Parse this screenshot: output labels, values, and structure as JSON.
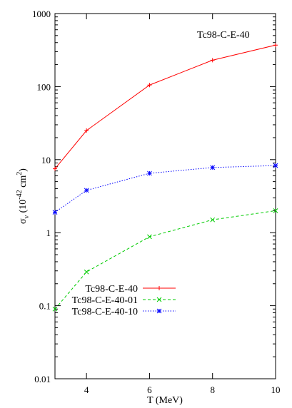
{
  "chart_data": {
    "type": "line",
    "title": "Tc98-C-E-40",
    "xlabel": "T (MeV)",
    "ylabel": {
      "sigma": "σ",
      "sub": "ν",
      "open": " (10",
      "exp": "-42",
      "unit": " cm",
      "sq": "2",
      "close": ")"
    },
    "yscale": "log",
    "xlim": [
      3,
      10
    ],
    "ylim": [
      0.01,
      1000
    ],
    "x_ticks": [
      4,
      6,
      8,
      10
    ],
    "x_tick_labels": [
      "4",
      "6",
      "8",
      "10"
    ],
    "y_ticks": [
      0.01,
      0.1,
      1,
      10,
      100,
      1000
    ],
    "y_tick_labels": [
      "0.01",
      "0.1",
      "1",
      "10",
      "100",
      "1000"
    ],
    "grid": false,
    "legend_position": "lower-left",
    "series": [
      {
        "name": "Tc98-C-E-40",
        "color": "#ff0000",
        "marker": "plus",
        "dash": "solid",
        "x": [
          3,
          4,
          6,
          8,
          10
        ],
        "y": [
          7.5,
          25,
          105,
          230,
          370
        ]
      },
      {
        "name": "Tc98-C-E-40-01",
        "color": "#00cc00",
        "marker": "cross",
        "dash": "dashed",
        "x": [
          3,
          4,
          6,
          8,
          10
        ],
        "y": [
          0.09,
          0.29,
          0.88,
          1.5,
          2.0
        ]
      },
      {
        "name": "Tc98-C-E-40-10",
        "color": "#0000ff",
        "marker": "star",
        "dash": "dotted",
        "x": [
          3,
          4,
          6,
          8,
          10
        ],
        "y": [
          1.9,
          3.8,
          6.5,
          7.8,
          8.3
        ]
      }
    ]
  }
}
